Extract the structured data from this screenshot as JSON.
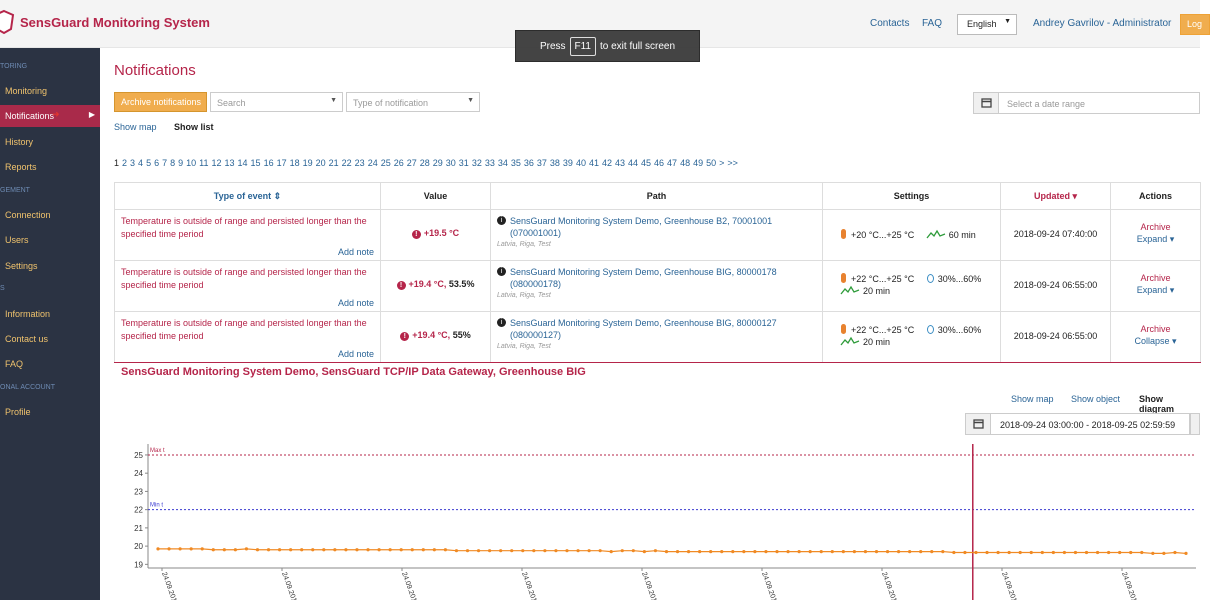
{
  "header": {
    "app_title": "SensGuard Monitoring System",
    "contacts": "Contacts",
    "faq": "FAQ",
    "language": "English",
    "user": "Andrey Gavrilov - Administrator",
    "logout": "Log"
  },
  "toast": {
    "press": "Press",
    "key": "F11",
    "suffix": "to exit full screen"
  },
  "sidebar": {
    "sections": [
      "TORING",
      "GEMENT",
      "S",
      "ONAL ACCOUNT"
    ],
    "items": [
      {
        "label": "Monitoring"
      },
      {
        "label": "Notifications"
      },
      {
        "label": "History"
      },
      {
        "label": "Reports"
      },
      {
        "label": "Connection"
      },
      {
        "label": "Users"
      },
      {
        "label": "Settings"
      },
      {
        "label": "Information"
      },
      {
        "label": "Contact us"
      },
      {
        "label": "FAQ"
      },
      {
        "label": "Profile"
      }
    ]
  },
  "main": {
    "title": "Notifications",
    "archive_button": "Archive notifications",
    "search_placeholder": "Search",
    "type_placeholder": "Type of notification",
    "date_placeholder": "Select a date range",
    "show_map": "Show map",
    "show_list": "Show list",
    "pager": [
      "1",
      "2",
      "3",
      "4",
      "5",
      "6",
      "7",
      "8",
      "9",
      "10",
      "11",
      "12",
      "13",
      "14",
      "15",
      "16",
      "17",
      "18",
      "19",
      "20",
      "21",
      "22",
      "23",
      "24",
      "25",
      "26",
      "27",
      "28",
      "29",
      "30",
      "31",
      "32",
      "33",
      "34",
      "35",
      "36",
      "37",
      "38",
      "39",
      "40",
      "41",
      "42",
      "43",
      "44",
      "45",
      "46",
      "47",
      "48",
      "49",
      "50",
      ">",
      ">>"
    ]
  },
  "table": {
    "headers": {
      "type": "Type of event",
      "value": "Value",
      "path": "Path",
      "settings": "Settings",
      "updated": "Updated",
      "actions": "Actions"
    },
    "rows": [
      {
        "event": "Temperature is outside of range and persisted longer than the specified time period",
        "add_note": "Add note",
        "value_temp": "+19.5 °C",
        "value_hum": "",
        "path": "SensGuard Monitoring System Demo, Greenhouse B2, 70001001 (070001001)",
        "location": "Latvia, Riga, Test",
        "temp_range": "+20 °C...+25 °C",
        "hum_range": "",
        "duration": "60 min",
        "updated": "2018-09-24 07:40:00",
        "action1": "Archive",
        "action2": "Expand ▾"
      },
      {
        "event": "Temperature is outside of range and persisted longer than the specified time period",
        "add_note": "Add note",
        "value_temp": "+19.4 °C,",
        "value_hum": "53.5%",
        "path": "SensGuard Monitoring System Demo, Greenhouse BIG, 80000178 (080000178)",
        "location": "Latvia, Riga, Test",
        "temp_range": "+22 °C...+25 °C",
        "hum_range": "30%...60%",
        "duration": "20 min",
        "updated": "2018-09-24 06:55:00",
        "action1": "Archive",
        "action2": "Expand ▾"
      },
      {
        "event": "Temperature is outside of range and persisted longer than the specified time period",
        "add_note": "Add note",
        "value_temp": "+19.4 °C,",
        "value_hum": "55%",
        "path": "SensGuard Monitoring System Demo, Greenhouse BIG, 80000127 (080000127)",
        "location": "Latvia, Riga, Test",
        "temp_range": "+22 °C...+25 °C",
        "hum_range": "30%...60%",
        "duration": "20 min",
        "updated": "2018-09-24 06:55:00",
        "action1": "Archive",
        "action2": "Collapse ▾"
      }
    ]
  },
  "detail": {
    "title": "SensGuard Monitoring System Demo, SensGuard TCP/IP Data Gateway, Greenhouse BIG",
    "show_map": "Show map",
    "show_object": "Show object",
    "show_diagram": "Show diagram",
    "range": "2018-09-24 03:00:00 - 2018-09-25 02:59:59"
  },
  "colors": {
    "accent": "#b5254a",
    "link": "#2a6496",
    "button": "#f0ad4e",
    "sidebar": "#2b3343",
    "series": "#f08a24"
  },
  "chart_data": {
    "type": "line",
    "y_ticks": [
      19,
      20,
      21,
      22,
      23,
      24,
      25
    ],
    "ylim": [
      18.8,
      25.6
    ],
    "max_label": "Max t",
    "max_value": 25,
    "min_label": "Min t",
    "min_value": 22,
    "x_tick_label": "24.09.201",
    "x_tick_count": 9,
    "marker_fraction": 0.787,
    "series": [
      {
        "values": [
          19.85,
          19.85,
          19.85,
          19.85,
          19.85,
          19.8,
          19.8,
          19.8,
          19.85,
          19.8,
          19.8,
          19.8,
          19.8,
          19.8,
          19.8,
          19.8,
          19.8,
          19.8,
          19.8,
          19.8,
          19.8,
          19.8,
          19.8,
          19.8,
          19.8,
          19.8,
          19.8,
          19.75,
          19.75,
          19.75,
          19.75,
          19.75,
          19.75,
          19.75,
          19.75,
          19.75,
          19.75,
          19.75,
          19.75,
          19.75,
          19.75,
          19.7,
          19.75,
          19.75,
          19.7,
          19.75,
          19.7,
          19.7,
          19.7,
          19.7,
          19.7,
          19.7,
          19.7,
          19.7,
          19.7,
          19.7,
          19.7,
          19.7,
          19.7,
          19.7,
          19.7,
          19.7,
          19.7,
          19.7,
          19.7,
          19.7,
          19.7,
          19.7,
          19.7,
          19.7,
          19.7,
          19.7,
          19.65,
          19.65,
          19.65,
          19.65,
          19.65,
          19.65,
          19.65,
          19.65,
          19.65,
          19.65,
          19.65,
          19.65,
          19.65,
          19.65,
          19.65,
          19.65,
          19.65,
          19.65,
          19.6,
          19.6,
          19.65,
          19.6
        ]
      }
    ]
  }
}
